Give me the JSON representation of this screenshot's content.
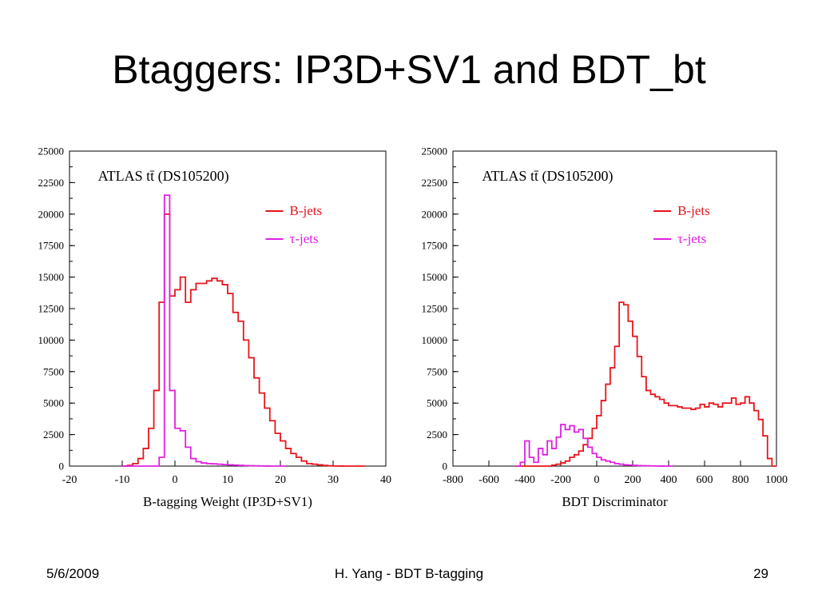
{
  "slide": {
    "title": "Btaggers: IP3D+SV1 and BDT_bt",
    "footer_date": "5/6/2009",
    "footer_center": "H. Yang - BDT B-tagging",
    "page_number": "29"
  },
  "colors": {
    "b_jets": "#e8141c",
    "tau_jets": "#e020e0"
  },
  "chart_data": [
    {
      "type": "line",
      "step": true,
      "annotation": "ATLAS tt̄ (DS105200)",
      "xlabel": "B-tagging Weight (IP3D+SV1)",
      "ylabel": "",
      "xlim": [
        -20,
        40
      ],
      "ylim": [
        0,
        25000
      ],
      "xticks": [
        "-20",
        "-10",
        "0",
        "10",
        "20",
        "30",
        "40"
      ],
      "xtick_values": [
        -20,
        -10,
        0,
        10,
        20,
        30,
        40
      ],
      "yticks": [
        "0",
        "2500",
        "5000",
        "7500",
        "10000",
        "12500",
        "15000",
        "17500",
        "20000",
        "22500",
        "25000"
      ],
      "ytick_values": [
        0,
        2500,
        5000,
        7500,
        10000,
        12500,
        15000,
        17500,
        20000,
        22500,
        25000
      ],
      "legend": "top-right",
      "grid": false,
      "series": [
        {
          "name": "B-jets",
          "color": "#e8141c",
          "x": [
            -10,
            -9,
            -8,
            -7,
            -6,
            -5,
            -4,
            -3,
            -2,
            -1,
            0,
            1,
            2,
            3,
            4,
            5,
            6,
            7,
            8,
            9,
            10,
            11,
            12,
            13,
            14,
            15,
            16,
            17,
            18,
            19,
            20,
            21,
            22,
            23,
            24,
            25,
            26,
            27,
            28,
            29,
            30,
            31,
            32,
            33,
            34,
            35
          ],
          "values": [
            0,
            50,
            200,
            600,
            1400,
            3000,
            6000,
            13000,
            20000,
            13500,
            14000,
            15000,
            13000,
            14000,
            14500,
            14500,
            14700,
            14900,
            14700,
            14400,
            13700,
            12200,
            11500,
            10000,
            8600,
            7000,
            5800,
            4600,
            3600,
            2600,
            2000,
            1400,
            1000,
            700,
            400,
            200,
            150,
            100,
            50,
            20,
            10,
            5,
            0,
            0,
            0,
            0
          ]
        },
        {
          "name": "τ-jets",
          "color": "#e020e0",
          "x": [
            -10,
            -9,
            -8,
            -7,
            -6,
            -5,
            -4,
            -3,
            -2,
            -1,
            0,
            1,
            2,
            3,
            4,
            5,
            6,
            7,
            8,
            9,
            10,
            11,
            12,
            13,
            14,
            15,
            16,
            17,
            18,
            19,
            20
          ],
          "values": [
            0,
            0,
            0,
            0,
            0,
            0,
            0,
            700,
            21500,
            6000,
            3000,
            2800,
            1500,
            600,
            350,
            250,
            200,
            180,
            150,
            120,
            100,
            80,
            60,
            40,
            30,
            20,
            10,
            5,
            0,
            0,
            0
          ]
        }
      ]
    },
    {
      "type": "line",
      "step": true,
      "annotation": "ATLAS tt̄ (DS105200)",
      "xlabel": "BDT Discriminator",
      "ylabel": "",
      "xlim": [
        -800,
        1000
      ],
      "ylim": [
        0,
        25000
      ],
      "xticks": [
        "-800",
        "-600",
        "-400",
        "-200",
        "0",
        "200",
        "400",
        "600",
        "800",
        "1000"
      ],
      "xtick_values": [
        -800,
        -600,
        -400,
        -200,
        0,
        200,
        400,
        600,
        800,
        1000
      ],
      "yticks": [
        "0",
        "2500",
        "5000",
        "7500",
        "10000",
        "12500",
        "15000",
        "17500",
        "20000",
        "22500",
        "25000"
      ],
      "ytick_values": [
        0,
        2500,
        5000,
        7500,
        10000,
        12500,
        15000,
        17500,
        20000,
        22500,
        25000
      ],
      "legend": "top-right",
      "grid": false,
      "series": [
        {
          "name": "B-jets",
          "color": "#e8141c",
          "x": [
            -450,
            -425,
            -400,
            -375,
            -350,
            -325,
            -300,
            -275,
            -250,
            -225,
            -200,
            -175,
            -150,
            -125,
            -100,
            -75,
            -50,
            -25,
            0,
            25,
            50,
            75,
            100,
            125,
            150,
            175,
            200,
            225,
            250,
            275,
            300,
            325,
            350,
            375,
            400,
            425,
            450,
            475,
            500,
            525,
            550,
            575,
            600,
            625,
            650,
            675,
            700,
            725,
            750,
            775,
            800,
            825,
            850,
            875,
            900,
            925,
            950,
            975
          ],
          "values": [
            0,
            0,
            0,
            0,
            0,
            0,
            0,
            0,
            80,
            150,
            250,
            400,
            700,
            900,
            1200,
            1700,
            2200,
            3000,
            4000,
            5200,
            6500,
            7800,
            9500,
            13000,
            12800,
            11500,
            10300,
            8700,
            7100,
            6000,
            5700,
            5500,
            5300,
            5000,
            4800,
            4800,
            4700,
            4600,
            4600,
            4500,
            4600,
            4900,
            4700,
            5000,
            4900,
            4700,
            5000,
            5000,
            5400,
            4900,
            5000,
            5500,
            5000,
            4400,
            3700,
            2400,
            600,
            0
          ]
        },
        {
          "name": "τ-jets",
          "color": "#e020e0",
          "x": [
            -450,
            -425,
            -400,
            -375,
            -350,
            -325,
            -300,
            -275,
            -250,
            -225,
            -200,
            -175,
            -150,
            -125,
            -100,
            -75,
            -50,
            -25,
            0,
            25,
            50,
            75,
            100,
            125,
            150,
            175,
            200,
            225,
            250,
            275,
            300,
            325,
            350,
            375,
            400
          ],
          "values": [
            0,
            300,
            2000,
            700,
            300,
            1400,
            900,
            2000,
            1400,
            2300,
            3300,
            2900,
            3200,
            2700,
            2900,
            2200,
            1500,
            1000,
            700,
            500,
            400,
            300,
            200,
            150,
            100,
            80,
            60,
            40,
            30,
            20,
            15,
            10,
            5,
            0,
            0
          ]
        }
      ]
    }
  ]
}
